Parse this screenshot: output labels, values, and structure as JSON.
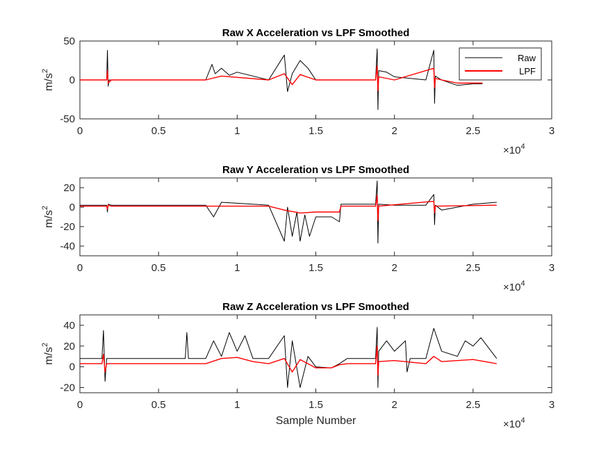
{
  "chart_data": [
    {
      "type": "line",
      "title": "Raw X Acceleration vs LPF Smoothed",
      "xlabel": "",
      "ylabel": "m/s^2",
      "xlim": [
        0,
        30000
      ],
      "ylim": [
        -50,
        50
      ],
      "xticks": [
        0,
        0.5,
        1,
        1.5,
        2,
        2.5,
        3
      ],
      "xtick_labels": [
        "0",
        "0.5",
        "1",
        "1.5",
        "2",
        "2.5",
        "3"
      ],
      "x_exponent": "10^4",
      "yticks": [
        -50,
        0,
        50
      ],
      "legend": {
        "position": "top-right",
        "entries": [
          "Raw",
          "LPF"
        ]
      },
      "series": [
        {
          "name": "Raw",
          "color": "#000000",
          "x": [
            0,
            1700,
            1750,
            1800,
            1850,
            2000,
            8000,
            8400,
            8600,
            9000,
            9500,
            10000,
            12000,
            13000,
            13200,
            13500,
            14000,
            14500,
            15000,
            16000,
            18800,
            18900,
            18950,
            19000,
            19500,
            20000,
            22000,
            22500,
            22550,
            22600,
            23000,
            24000,
            25000,
            25600
          ],
          "y": [
            0,
            0,
            38,
            -8,
            0,
            0,
            0,
            20,
            8,
            15,
            6,
            10,
            0,
            32,
            -15,
            8,
            25,
            15,
            0,
            0,
            0,
            40,
            -38,
            12,
            10,
            4,
            0,
            38,
            -30,
            5,
            0,
            -7,
            -5,
            -5
          ]
        },
        {
          "name": "LPF",
          "color": "#ff0000",
          "x": [
            0,
            1700,
            1750,
            1800,
            2000,
            8000,
            9000,
            12000,
            13000,
            13500,
            14000,
            15000,
            18800,
            18900,
            18950,
            19000,
            20000,
            22500,
            22550,
            22600,
            23000,
            24000,
            25600
          ],
          "y": [
            0,
            0,
            12,
            -4,
            0,
            0,
            5,
            0,
            8,
            -6,
            7,
            0,
            0,
            18,
            -14,
            4,
            0,
            15,
            -10,
            2,
            0,
            -4,
            -4
          ]
        }
      ]
    },
    {
      "type": "line",
      "title": "Raw Y Acceleration vs LPF Smoothed",
      "xlabel": "",
      "ylabel": "m/s^2",
      "xlim": [
        0,
        30000
      ],
      "ylim": [
        -50,
        30
      ],
      "xticks": [
        0,
        0.5,
        1,
        1.5,
        2,
        2.5,
        3
      ],
      "xtick_labels": [
        "0",
        "0.5",
        "1",
        "1.5",
        "2",
        "2.5",
        "3"
      ],
      "x_exponent": "10^4",
      "yticks": [
        -40,
        -20,
        0,
        20
      ],
      "series": [
        {
          "name": "Raw",
          "color": "#000000",
          "x": [
            0,
            1700,
            1750,
            1800,
            2000,
            8000,
            8500,
            9000,
            12000,
            13000,
            13200,
            13500,
            13800,
            14000,
            14300,
            14600,
            15000,
            16000,
            16500,
            16600,
            18800,
            18900,
            18950,
            19000,
            20000,
            22000,
            22500,
            22550,
            22600,
            23000,
            24000,
            25000,
            26500
          ],
          "y": [
            2,
            2,
            -5,
            3,
            2,
            2,
            -10,
            5,
            2,
            -35,
            0,
            -30,
            -5,
            -35,
            -8,
            -30,
            -10,
            -10,
            -15,
            3,
            3,
            27,
            -37,
            3,
            2,
            2,
            13,
            -18,
            2,
            -3,
            0,
            3,
            5
          ]
        },
        {
          "name": "LPF",
          "color": "#ff0000",
          "x": [
            0,
            1700,
            1750,
            1800,
            2000,
            12000,
            13000,
            14000,
            15000,
            16500,
            16600,
            18800,
            18900,
            18950,
            19000,
            22500,
            22550,
            22600,
            26500
          ],
          "y": [
            1,
            1,
            -2,
            2,
            1,
            1,
            -3,
            -6,
            -5,
            -5,
            1,
            1,
            12,
            -14,
            1,
            6,
            -6,
            1,
            2
          ]
        }
      ]
    },
    {
      "type": "line",
      "title": "Raw Z Acceleration vs LPF Smoothed",
      "xlabel": "Sample Number",
      "ylabel": "m/s^2",
      "xlim": [
        0,
        30000
      ],
      "ylim": [
        -25,
        50
      ],
      "xticks": [
        0,
        0.5,
        1,
        1.5,
        2,
        2.5,
        3
      ],
      "xtick_labels": [
        "0",
        "0.5",
        "1",
        "1.5",
        "2",
        "2.5",
        "3"
      ],
      "x_exponent": "10^4",
      "yticks": [
        -20,
        0,
        20,
        40
      ],
      "series": [
        {
          "name": "Raw",
          "color": "#000000",
          "x": [
            0,
            1400,
            1500,
            1600,
            1700,
            2000,
            6700,
            6800,
            6900,
            8000,
            8500,
            9000,
            9500,
            10000,
            10500,
            11000,
            12000,
            13000,
            13200,
            13500,
            14000,
            14500,
            15000,
            16000,
            16500,
            17000,
            18800,
            18900,
            18950,
            19000,
            19500,
            20000,
            20700,
            20800,
            21000,
            22000,
            22500,
            23000,
            24000,
            24500,
            25000,
            25500,
            26500
          ],
          "y": [
            8,
            8,
            35,
            -14,
            8,
            8,
            8,
            33,
            8,
            8,
            25,
            10,
            33,
            15,
            30,
            8,
            8,
            30,
            -20,
            25,
            -20,
            10,
            0,
            -1,
            3,
            8,
            8,
            38,
            -20,
            15,
            25,
            15,
            25,
            -5,
            8,
            8,
            37,
            15,
            10,
            25,
            20,
            28,
            8
          ]
        },
        {
          "name": "LPF",
          "color": "#ff0000",
          "x": [
            0,
            1400,
            1500,
            1600,
            1700,
            2000,
            8000,
            9000,
            10000,
            11000,
            12000,
            13000,
            13500,
            14000,
            15000,
            16000,
            16500,
            17000,
            18800,
            18900,
            18950,
            19000,
            20000,
            22000,
            22500,
            23000,
            24000,
            25000,
            26500
          ],
          "y": [
            3,
            3,
            12,
            -5,
            3,
            3,
            3,
            8,
            9,
            5,
            3,
            8,
            -5,
            7,
            -1,
            -1,
            2,
            3,
            3,
            20,
            -8,
            5,
            6,
            3,
            10,
            5,
            6,
            7,
            3
          ]
        }
      ]
    }
  ]
}
